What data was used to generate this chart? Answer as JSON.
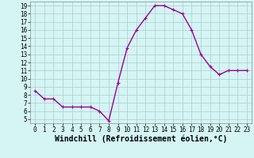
{
  "x": [
    0,
    1,
    2,
    3,
    4,
    5,
    6,
    7,
    8,
    9,
    10,
    11,
    12,
    13,
    14,
    15,
    16,
    17,
    18,
    19,
    20,
    21,
    22,
    23
  ],
  "y": [
    8.5,
    7.5,
    7.5,
    6.5,
    6.5,
    6.5,
    6.5,
    6.0,
    4.8,
    9.5,
    13.8,
    16.0,
    17.5,
    19.0,
    19.0,
    18.5,
    18.0,
    16.0,
    13.0,
    11.5,
    10.5,
    11.0,
    11.0,
    11.0
  ],
  "line_color": "#990099",
  "marker": "+",
  "marker_size": 3.5,
  "bg_color": "#d5f5f5",
  "grid_color": "#aacccc",
  "xlabel": "Windchill (Refroidissement éolien,°C)",
  "ylabel_ticks": [
    5,
    6,
    7,
    8,
    9,
    10,
    11,
    12,
    13,
    14,
    15,
    16,
    17,
    18,
    19
  ],
  "xlim": [
    -0.5,
    23.5
  ],
  "ylim": [
    4.5,
    19.5
  ],
  "tick_fontsize": 5.5,
  "xlabel_fontsize": 7.0,
  "line_width": 1.0,
  "markeredgewidth": 0.8
}
